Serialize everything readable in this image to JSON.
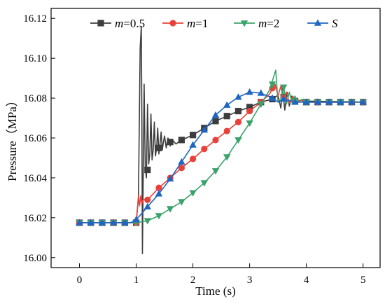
{
  "chart_data": {
    "type": "line",
    "xlabel": "Time (s)",
    "ylabel": "Pressure（MPa）",
    "xlim": [
      -0.5,
      5.3
    ],
    "ylim": [
      15.995,
      16.125
    ],
    "xticks": [
      "0",
      "1",
      "2",
      "3",
      "4",
      "5"
    ],
    "yticks": [
      "16.00",
      "16.02",
      "16.04",
      "16.06",
      "16.08",
      "16.10",
      "16.12"
    ],
    "grid": false,
    "legend_position": "top",
    "series": [
      {
        "name": "m=0.5",
        "legend_label": {
          "italic": "m",
          "rest": "=0.5"
        },
        "color": "#3d3d3d",
        "marker": "square",
        "line": [
          [
            0,
            16.0175
          ],
          [
            0.9,
            16.0175
          ],
          [
            1.0,
            16.0175
          ],
          [
            1.04,
            16.03
          ],
          [
            1.07,
            16.105
          ],
          [
            1.09,
            16.116
          ],
          [
            1.1,
            16.07
          ],
          [
            1.11,
            16.002
          ],
          [
            1.12,
            16.03
          ],
          [
            1.14,
            16.087
          ],
          [
            1.16,
            16.045
          ],
          [
            1.18,
            16.04
          ],
          [
            1.2,
            16.077
          ],
          [
            1.22,
            16.047
          ],
          [
            1.24,
            16.052
          ],
          [
            1.26,
            16.072
          ],
          [
            1.28,
            16.049
          ],
          [
            1.3,
            16.054
          ],
          [
            1.32,
            16.068
          ],
          [
            1.34,
            16.051
          ],
          [
            1.36,
            16.055
          ],
          [
            1.38,
            16.065
          ],
          [
            1.4,
            16.052
          ],
          [
            1.42,
            16.057
          ],
          [
            1.44,
            16.063
          ],
          [
            1.46,
            16.054
          ],
          [
            1.48,
            16.058
          ],
          [
            1.5,
            16.061
          ],
          [
            1.53,
            16.055
          ],
          [
            1.56,
            16.06
          ],
          [
            1.6,
            16.056
          ],
          [
            1.64,
            16.059
          ],
          [
            1.7,
            16.057
          ],
          [
            1.8,
            16.059
          ],
          [
            2.0,
            16.0615
          ],
          [
            2.2,
            16.065
          ],
          [
            2.4,
            16.0685
          ],
          [
            2.6,
            16.071
          ],
          [
            2.8,
            16.0735
          ],
          [
            3.0,
            16.0755
          ],
          [
            3.2,
            16.078
          ],
          [
            3.4,
            16.0795
          ],
          [
            3.5,
            16.0815
          ],
          [
            3.55,
            16.075
          ],
          [
            3.58,
            16.085
          ],
          [
            3.62,
            16.074
          ],
          [
            3.66,
            16.083
          ],
          [
            3.7,
            16.076
          ],
          [
            3.74,
            16.081
          ],
          [
            3.78,
            16.077
          ],
          [
            3.83,
            16.0795
          ],
          [
            3.9,
            16.078
          ],
          [
            4.0,
            16.0785
          ],
          [
            5.0,
            16.078
          ]
        ],
        "markers": [
          [
            0,
            16.0175
          ],
          [
            0.2,
            16.0175
          ],
          [
            0.4,
            16.0175
          ],
          [
            0.6,
            16.0175
          ],
          [
            0.8,
            16.0175
          ],
          [
            1.0,
            16.0175
          ],
          [
            1.2,
            16.044
          ],
          [
            1.4,
            16.055
          ],
          [
            1.6,
            16.058
          ],
          [
            1.8,
            16.059
          ],
          [
            2.0,
            16.0615
          ],
          [
            2.2,
            16.065
          ],
          [
            2.4,
            16.0685
          ],
          [
            2.6,
            16.071
          ],
          [
            2.8,
            16.0735
          ],
          [
            3.0,
            16.0755
          ],
          [
            3.2,
            16.078
          ],
          [
            3.4,
            16.0795
          ],
          [
            3.6,
            16.0805
          ],
          [
            3.8,
            16.0785
          ],
          [
            4.0,
            16.078
          ],
          [
            4.2,
            16.078
          ],
          [
            4.4,
            16.078
          ],
          [
            4.6,
            16.078
          ],
          [
            4.8,
            16.078
          ],
          [
            5.0,
            16.078
          ]
        ]
      },
      {
        "name": "m=1",
        "legend_label": {
          "italic": "m",
          "rest": "=1"
        },
        "color": "#e8413a",
        "marker": "circle",
        "line": [
          [
            0,
            16.0175
          ],
          [
            0.9,
            16.0175
          ],
          [
            1.0,
            16.0175
          ],
          [
            1.02,
            16.024
          ],
          [
            1.04,
            16.031
          ],
          [
            1.06,
            16.026
          ],
          [
            1.08,
            16.031
          ],
          [
            1.1,
            16.027
          ],
          [
            1.12,
            16.029
          ],
          [
            1.2,
            16.029
          ],
          [
            1.4,
            16.035
          ],
          [
            1.6,
            16.04
          ],
          [
            1.8,
            16.045
          ],
          [
            2.0,
            16.0495
          ],
          [
            2.2,
            16.0545
          ],
          [
            2.4,
            16.059
          ],
          [
            2.6,
            16.0635
          ],
          [
            2.8,
            16.068
          ],
          [
            3.0,
            16.0735
          ],
          [
            3.2,
            16.078
          ],
          [
            3.35,
            16.082
          ],
          [
            3.45,
            16.087
          ],
          [
            3.5,
            16.081
          ],
          [
            3.55,
            16.086
          ],
          [
            3.6,
            16.079
          ],
          [
            3.65,
            16.083
          ],
          [
            3.7,
            16.0775
          ],
          [
            3.76,
            16.081
          ],
          [
            3.82,
            16.0785
          ],
          [
            3.9,
            16.079
          ],
          [
            4.0,
            16.078
          ],
          [
            5.0,
            16.078
          ]
        ],
        "markers": [
          [
            0,
            16.0175
          ],
          [
            0.2,
            16.0175
          ],
          [
            0.4,
            16.0175
          ],
          [
            0.6,
            16.0175
          ],
          [
            0.8,
            16.0175
          ],
          [
            1.0,
            16.0175
          ],
          [
            1.2,
            16.029
          ],
          [
            1.4,
            16.035
          ],
          [
            1.6,
            16.04
          ],
          [
            1.8,
            16.045
          ],
          [
            2.0,
            16.0495
          ],
          [
            2.2,
            16.0545
          ],
          [
            2.4,
            16.059
          ],
          [
            2.6,
            16.0635
          ],
          [
            2.8,
            16.068
          ],
          [
            3.0,
            16.0735
          ],
          [
            3.2,
            16.078
          ],
          [
            3.4,
            16.085
          ],
          [
            3.6,
            16.08
          ],
          [
            3.8,
            16.0785
          ],
          [
            4.0,
            16.078
          ],
          [
            4.2,
            16.078
          ],
          [
            4.4,
            16.078
          ],
          [
            4.6,
            16.078
          ],
          [
            4.8,
            16.078
          ],
          [
            5.0,
            16.078
          ]
        ]
      },
      {
        "name": "m=2",
        "legend_label": {
          "italic": "m",
          "rest": "=2"
        },
        "color": "#3aa26a",
        "marker": "triangle-down",
        "line": [
          [
            0,
            16.0175
          ],
          [
            0.9,
            16.0175
          ],
          [
            1.0,
            16.0175
          ],
          [
            1.2,
            16.0185
          ],
          [
            1.4,
            16.021
          ],
          [
            1.6,
            16.0245
          ],
          [
            1.8,
            16.028
          ],
          [
            2.0,
            16.0325
          ],
          [
            2.2,
            16.0375
          ],
          [
            2.4,
            16.0435
          ],
          [
            2.6,
            16.0505
          ],
          [
            2.8,
            16.059
          ],
          [
            3.0,
            16.0675
          ],
          [
            3.2,
            16.077
          ],
          [
            3.35,
            16.084
          ],
          [
            3.46,
            16.094
          ],
          [
            3.5,
            16.078
          ],
          [
            3.55,
            16.079
          ],
          [
            3.6,
            16.086
          ],
          [
            3.65,
            16.077
          ],
          [
            3.7,
            16.083
          ],
          [
            3.75,
            16.0775
          ],
          [
            3.8,
            16.081
          ],
          [
            3.86,
            16.078
          ],
          [
            3.93,
            16.0795
          ],
          [
            4.0,
            16.078
          ],
          [
            5.0,
            16.078
          ]
        ],
        "markers": [
          [
            0,
            16.0175
          ],
          [
            0.2,
            16.0175
          ],
          [
            0.4,
            16.0175
          ],
          [
            0.6,
            16.0175
          ],
          [
            0.8,
            16.0175
          ],
          [
            1.0,
            16.0175
          ],
          [
            1.2,
            16.0185
          ],
          [
            1.4,
            16.021
          ],
          [
            1.6,
            16.0245
          ],
          [
            1.8,
            16.028
          ],
          [
            2.0,
            16.0325
          ],
          [
            2.2,
            16.0375
          ],
          [
            2.4,
            16.0435
          ],
          [
            2.6,
            16.0505
          ],
          [
            2.8,
            16.059
          ],
          [
            3.0,
            16.0675
          ],
          [
            3.2,
            16.077
          ],
          [
            3.4,
            16.087
          ],
          [
            3.6,
            16.0855
          ],
          [
            3.8,
            16.0785
          ],
          [
            4.0,
            16.078
          ],
          [
            4.2,
            16.078
          ],
          [
            4.4,
            16.078
          ],
          [
            4.6,
            16.078
          ],
          [
            4.8,
            16.078
          ],
          [
            5.0,
            16.078
          ]
        ]
      },
      {
        "name": "S",
        "legend_label": {
          "italic": "S",
          "rest": ""
        },
        "color": "#1f66c2",
        "marker": "triangle-up",
        "line": [
          [
            0,
            16.0175
          ],
          [
            0.9,
            16.0175
          ],
          [
            1.0,
            16.019
          ],
          [
            1.2,
            16.0255
          ],
          [
            1.4,
            16.032
          ],
          [
            1.6,
            16.0395
          ],
          [
            1.8,
            16.048
          ],
          [
            2.0,
            16.0565
          ],
          [
            2.2,
            16.064
          ],
          [
            2.4,
            16.0715
          ],
          [
            2.6,
            16.0765
          ],
          [
            2.8,
            16.0805
          ],
          [
            3.0,
            16.083
          ],
          [
            3.2,
            16.0825
          ],
          [
            3.4,
            16.08
          ],
          [
            3.5,
            16.078
          ],
          [
            3.6,
            16.0795
          ],
          [
            3.8,
            16.078
          ],
          [
            4.0,
            16.078
          ],
          [
            5.0,
            16.078
          ]
        ],
        "markers": [
          [
            0,
            16.0175
          ],
          [
            0.2,
            16.0175
          ],
          [
            0.4,
            16.0175
          ],
          [
            0.6,
            16.0175
          ],
          [
            0.8,
            16.0175
          ],
          [
            1.0,
            16.019
          ],
          [
            1.2,
            16.0255
          ],
          [
            1.4,
            16.032
          ],
          [
            1.6,
            16.0395
          ],
          [
            1.8,
            16.048
          ],
          [
            2.0,
            16.0565
          ],
          [
            2.2,
            16.064
          ],
          [
            2.4,
            16.0715
          ],
          [
            2.6,
            16.0765
          ],
          [
            2.8,
            16.0805
          ],
          [
            3.0,
            16.083
          ],
          [
            3.2,
            16.0825
          ],
          [
            3.4,
            16.08
          ],
          [
            3.6,
            16.0795
          ],
          [
            3.8,
            16.078
          ],
          [
            4.0,
            16.078
          ],
          [
            4.2,
            16.078
          ],
          [
            4.4,
            16.078
          ],
          [
            4.6,
            16.078
          ],
          [
            4.8,
            16.078
          ],
          [
            5.0,
            16.078
          ]
        ]
      }
    ]
  }
}
